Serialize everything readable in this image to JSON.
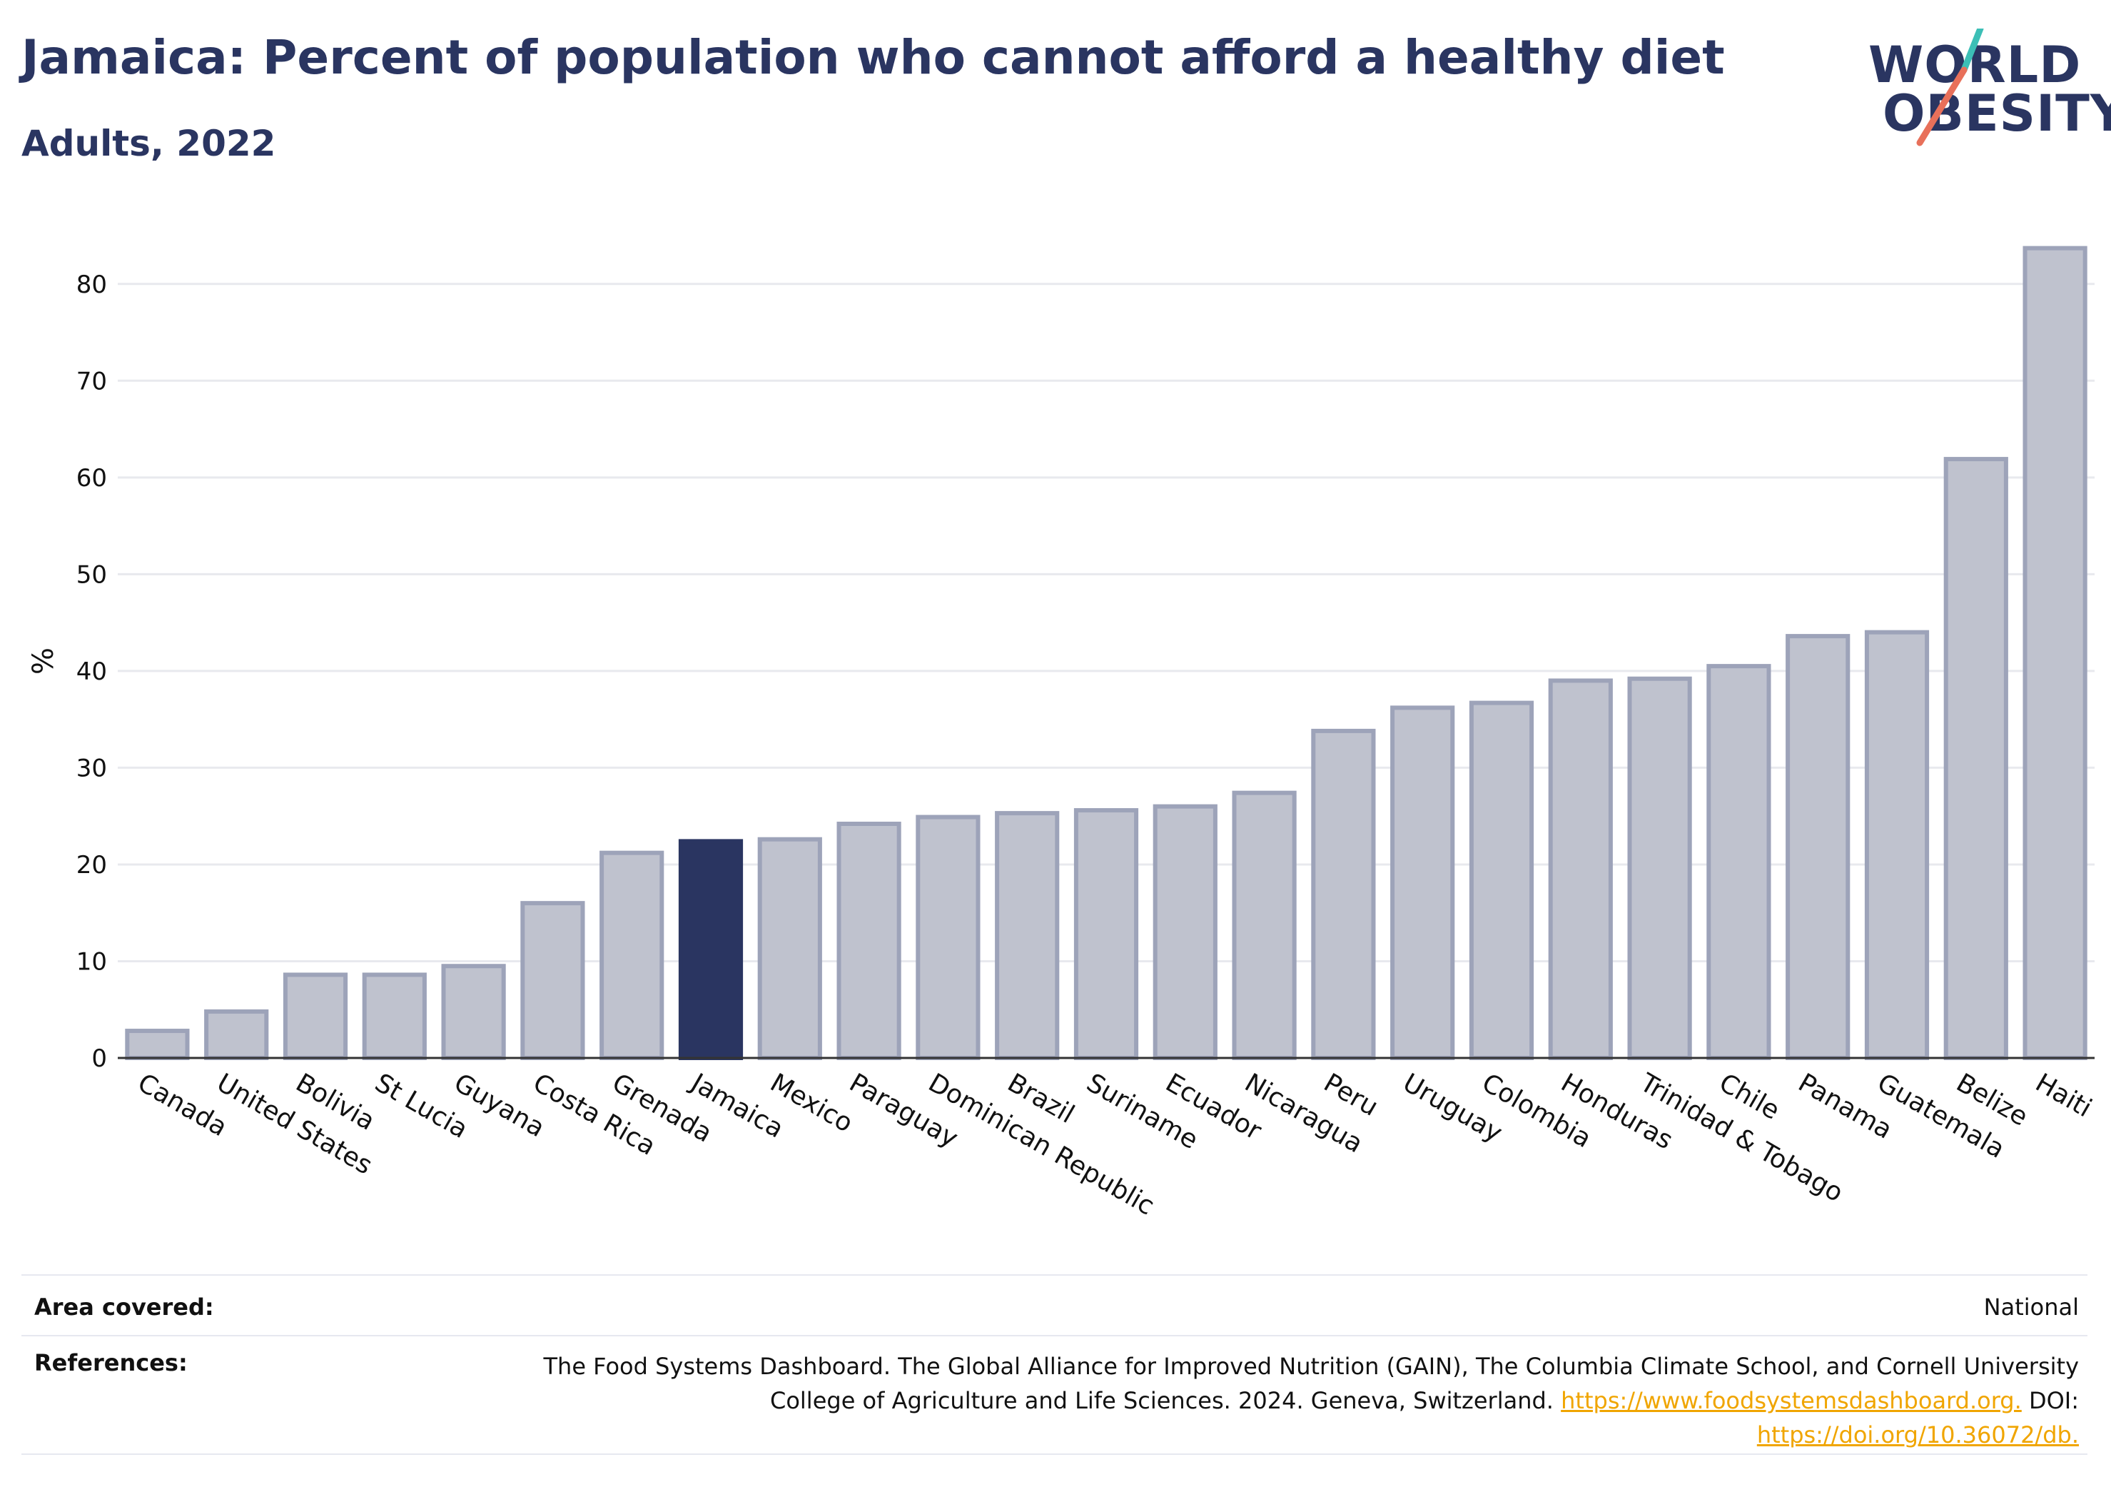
{
  "header": {
    "title": "Jamaica: Percent of population who cannot afford a healthy diet",
    "subtitle": "Adults, 2022"
  },
  "logo": {
    "line1": "WORLD",
    "line2": "OBESITY",
    "colors": {
      "text": "#2a3561",
      "slash_top": "#3cbfb6",
      "slash_bottom": "#e8705a"
    }
  },
  "chart_data": {
    "type": "bar",
    "categories": [
      "Canada",
      "United States",
      "Bolivia",
      "St Lucia",
      "Guyana",
      "Costa Rica",
      "Grenada",
      "Jamaica",
      "Mexico",
      "Paraguay",
      "Dominican Republic",
      "Brazil",
      "Suriname",
      "Ecuador",
      "Nicaragua",
      "Peru",
      "Uruguay",
      "Colombia",
      "Honduras",
      "Trinidad & Tobago",
      "Chile",
      "Panama",
      "Guatemala",
      "Belize",
      "Haiti"
    ],
    "values": [
      2.8,
      4.8,
      8.6,
      8.6,
      9.5,
      16.0,
      21.2,
      22.4,
      22.6,
      24.2,
      24.9,
      25.3,
      25.6,
      26.0,
      27.4,
      33.8,
      36.2,
      36.7,
      39.0,
      39.2,
      40.5,
      43.6,
      44.0,
      61.9,
      83.7
    ],
    "highlight": "Jamaica",
    "ylabel": "%",
    "ylim": [
      0,
      85
    ],
    "yticks": [
      0,
      10,
      20,
      30,
      40,
      50,
      60,
      70,
      80
    ],
    "grid": true,
    "colors": {
      "bar": "#bfc2ce",
      "bar_edge": "#9da3b9",
      "highlight": "#2a3561",
      "grid": "#e8e9ee",
      "axis": "#333333"
    }
  },
  "footer": {
    "area_label": "Area covered:",
    "area_value": "National",
    "refs_label": "References:",
    "refs_text": "The Food Systems Dashboard. The Global Alliance for Improved Nutrition (GAIN), The Columbia Climate School, and Cornell University College of Agriculture and Life Sciences. 2024. Geneva, Switzerland.",
    "refs_link1": "https://www.foodsystemsdashboard.org.",
    "refs_doi_label": "DOI:",
    "refs_link2": "https://doi.org/10.36072/db."
  }
}
